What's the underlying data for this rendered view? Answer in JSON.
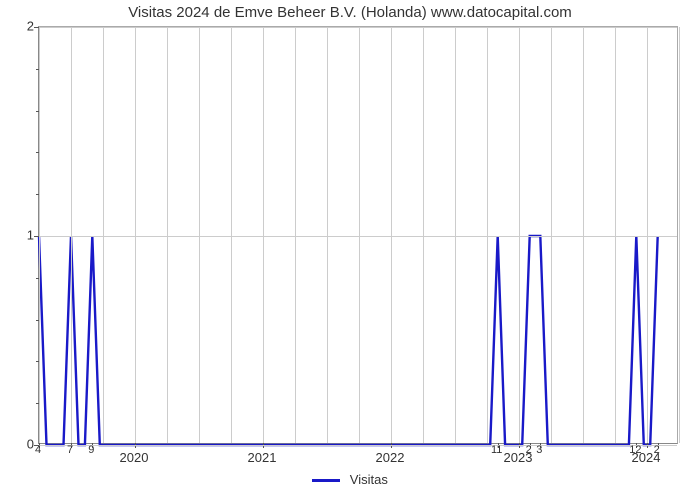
{
  "chart": {
    "type": "line",
    "title": "Visitas 2024 de Emve Beheer B.V. (Holanda) www.datocapital.com",
    "title_fontsize": 15,
    "background_color": "#ffffff",
    "grid_color": "#cccccc",
    "axis_color": "#888888",
    "yaxis": {
      "min": 0,
      "max": 2,
      "ticks": [
        0,
        1,
        2
      ],
      "minor_ticks_between": 4,
      "label_fontsize": 13
    },
    "xaxis": {
      "start_month_index": 0,
      "total_months": 60,
      "year_labels": [
        {
          "label": "2020",
          "month_index": 9
        },
        {
          "label": "2021",
          "month_index": 21
        },
        {
          "label": "2022",
          "month_index": 33
        },
        {
          "label": "2023",
          "month_index": 45
        },
        {
          "label": "2024",
          "month_index": 57
        }
      ],
      "minor_labels": [
        {
          "label": "4",
          "month_index": 0
        },
        {
          "label": "7",
          "month_index": 3
        },
        {
          "label": "9",
          "month_index": 5
        },
        {
          "label": "11",
          "month_index": 43
        },
        {
          "label": "2",
          "month_index": 46
        },
        {
          "label": "3",
          "month_index": 47
        },
        {
          "label": "12",
          "month_index": 56
        },
        {
          "label": "2",
          "month_index": 58
        }
      ],
      "label_fontsize": 13
    },
    "series": {
      "name": "Visitas",
      "color": "#1919c8",
      "line_width": 2.4,
      "points": [
        {
          "x": 0,
          "y": 1
        },
        {
          "x": 0.7,
          "y": 0
        },
        {
          "x": 2.3,
          "y": 0
        },
        {
          "x": 3,
          "y": 1
        },
        {
          "x": 3.7,
          "y": 0
        },
        {
          "x": 4.3,
          "y": 0
        },
        {
          "x": 5,
          "y": 1
        },
        {
          "x": 5.7,
          "y": 0
        },
        {
          "x": 42.3,
          "y": 0
        },
        {
          "x": 43,
          "y": 1
        },
        {
          "x": 43.7,
          "y": 0
        },
        {
          "x": 45.3,
          "y": 0
        },
        {
          "x": 46,
          "y": 1
        },
        {
          "x": 47,
          "y": 1
        },
        {
          "x": 47.7,
          "y": 0
        },
        {
          "x": 55.3,
          "y": 0
        },
        {
          "x": 56,
          "y": 1
        },
        {
          "x": 56.7,
          "y": 0
        },
        {
          "x": 57.3,
          "y": 0
        },
        {
          "x": 58,
          "y": 1
        }
      ]
    },
    "legend": {
      "label": "Visitas"
    }
  }
}
